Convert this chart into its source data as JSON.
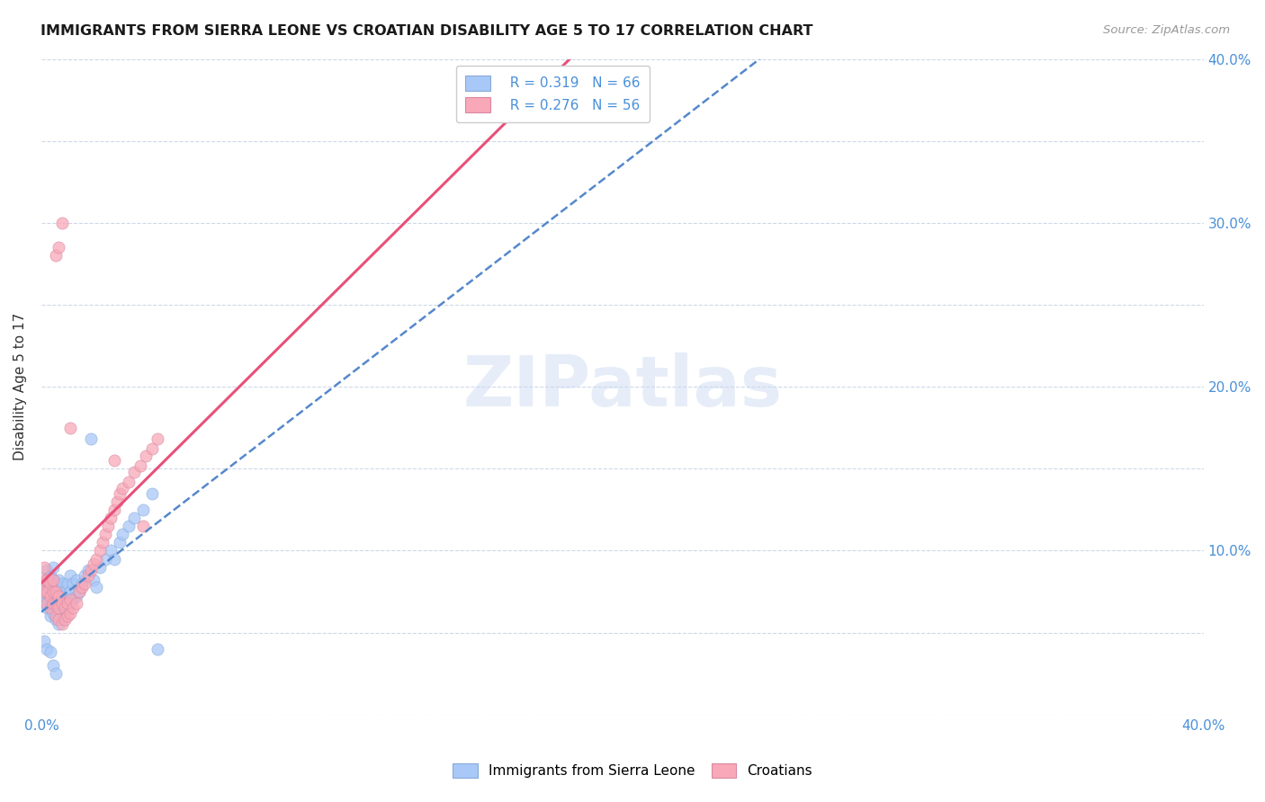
{
  "title": "IMMIGRANTS FROM SIERRA LEONE VS CROATIAN DISABILITY AGE 5 TO 17 CORRELATION CHART",
  "source": "Source: ZipAtlas.com",
  "ylabel": "Disability Age 5 to 17",
  "xlim": [
    0.0,
    0.4
  ],
  "ylim": [
    0.0,
    0.4
  ],
  "legend_r1": "R = 0.319",
  "legend_n1": "N = 66",
  "legend_r2": "R = 0.276",
  "legend_n2": "N = 56",
  "color_sierra": "#a8c8f8",
  "color_croatian": "#f8a8b8",
  "line_color_sierra": "#5588cc",
  "line_color_croatian": "#e8507a",
  "sierra_leone_x": [
    0.001,
    0.001,
    0.001,
    0.002,
    0.002,
    0.002,
    0.002,
    0.002,
    0.003,
    0.003,
    0.003,
    0.003,
    0.003,
    0.004,
    0.004,
    0.004,
    0.004,
    0.004,
    0.005,
    0.005,
    0.005,
    0.005,
    0.006,
    0.006,
    0.006,
    0.006,
    0.007,
    0.007,
    0.007,
    0.007,
    0.008,
    0.008,
    0.008,
    0.009,
    0.009,
    0.009,
    0.01,
    0.01,
    0.01,
    0.011,
    0.011,
    0.012,
    0.012,
    0.013,
    0.014,
    0.015,
    0.016,
    0.017,
    0.018,
    0.019,
    0.02,
    0.022,
    0.024,
    0.025,
    0.027,
    0.028,
    0.03,
    0.032,
    0.035,
    0.038,
    0.04,
    0.001,
    0.002,
    0.003,
    0.004,
    0.005
  ],
  "sierra_leone_y": [
    0.068,
    0.072,
    0.078,
    0.065,
    0.07,
    0.075,
    0.082,
    0.088,
    0.06,
    0.065,
    0.07,
    0.078,
    0.085,
    0.062,
    0.068,
    0.075,
    0.082,
    0.09,
    0.058,
    0.065,
    0.072,
    0.08,
    0.055,
    0.068,
    0.075,
    0.082,
    0.058,
    0.065,
    0.072,
    0.08,
    0.06,
    0.068,
    0.075,
    0.065,
    0.072,
    0.08,
    0.068,
    0.075,
    0.085,
    0.07,
    0.08,
    0.072,
    0.082,
    0.075,
    0.08,
    0.085,
    0.088,
    0.168,
    0.082,
    0.078,
    0.09,
    0.095,
    0.1,
    0.095,
    0.105,
    0.11,
    0.115,
    0.12,
    0.125,
    0.135,
    0.04,
    0.045,
    0.04,
    0.038,
    0.03,
    0.025
  ],
  "croatian_x": [
    0.001,
    0.001,
    0.001,
    0.002,
    0.002,
    0.002,
    0.003,
    0.003,
    0.003,
    0.004,
    0.004,
    0.004,
    0.005,
    0.005,
    0.005,
    0.006,
    0.006,
    0.006,
    0.007,
    0.007,
    0.008,
    0.008,
    0.009,
    0.009,
    0.01,
    0.01,
    0.011,
    0.012,
    0.013,
    0.014,
    0.015,
    0.016,
    0.017,
    0.018,
    0.019,
    0.02,
    0.021,
    0.022,
    0.023,
    0.024,
    0.025,
    0.026,
    0.027,
    0.028,
    0.03,
    0.032,
    0.034,
    0.036,
    0.038,
    0.04,
    0.005,
    0.006,
    0.007,
    0.01,
    0.035,
    0.025
  ],
  "croatian_y": [
    0.075,
    0.082,
    0.09,
    0.068,
    0.075,
    0.082,
    0.065,
    0.072,
    0.08,
    0.068,
    0.075,
    0.082,
    0.06,
    0.068,
    0.075,
    0.058,
    0.065,
    0.072,
    0.055,
    0.068,
    0.058,
    0.065,
    0.06,
    0.068,
    0.062,
    0.07,
    0.065,
    0.068,
    0.075,
    0.078,
    0.08,
    0.085,
    0.088,
    0.092,
    0.095,
    0.1,
    0.105,
    0.11,
    0.115,
    0.12,
    0.125,
    0.13,
    0.135,
    0.138,
    0.142,
    0.148,
    0.152,
    0.158,
    0.162,
    0.168,
    0.28,
    0.285,
    0.3,
    0.175,
    0.115,
    0.155
  ]
}
